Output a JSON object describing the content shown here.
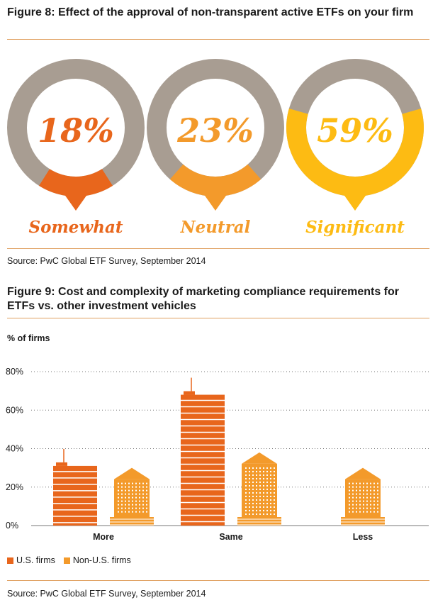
{
  "figure8": {
    "title": "Figure 8: Effect of the approval of non-transparent active ETFs on your firm",
    "source": "Source: PwC Global ETF Survey, September 2014"
  },
  "figure9": {
    "title": "Figure 9: Cost and complexity of marketing compliance requirements for ETFs vs. other investment vehicles",
    "ylabel": "% of firms",
    "source": "Source: PwC Global ETF Survey, September 2014"
  },
  "colors": {
    "gray": "#a89d92",
    "somewhat": "#e8661c",
    "neutral": "#f39a2b",
    "significant": "#fdbb13",
    "us": "#e8661c",
    "nonus": "#f39a2b",
    "rule": "#e0a060"
  },
  "chart_data": [
    {
      "type": "pie",
      "title": "Figure 8: Effect of the approval of non-transparent active ETFs on your firm",
      "categories": [
        "Somewhat",
        "Neutral",
        "Significant"
      ],
      "values": [
        18,
        23,
        59
      ],
      "labels": [
        "18%",
        "23%",
        "59%"
      ]
    },
    {
      "type": "bar",
      "title": "Figure 9: Cost and complexity of marketing compliance requirements for ETFs vs. other investment vehicles",
      "ylabel": "% of firms",
      "categories": [
        "More",
        "Same",
        "Less"
      ],
      "yticks": [
        "0%",
        "20%",
        "40%",
        "60%",
        "80%"
      ],
      "ylim": [
        0,
        80
      ],
      "grid": true,
      "legend": "bottom-left",
      "series": [
        {
          "name": "U.S. firms",
          "values": [
            31,
            68,
            0
          ]
        },
        {
          "name": "Non-U.S. firms",
          "values": [
            30,
            38,
            30
          ]
        }
      ]
    }
  ]
}
